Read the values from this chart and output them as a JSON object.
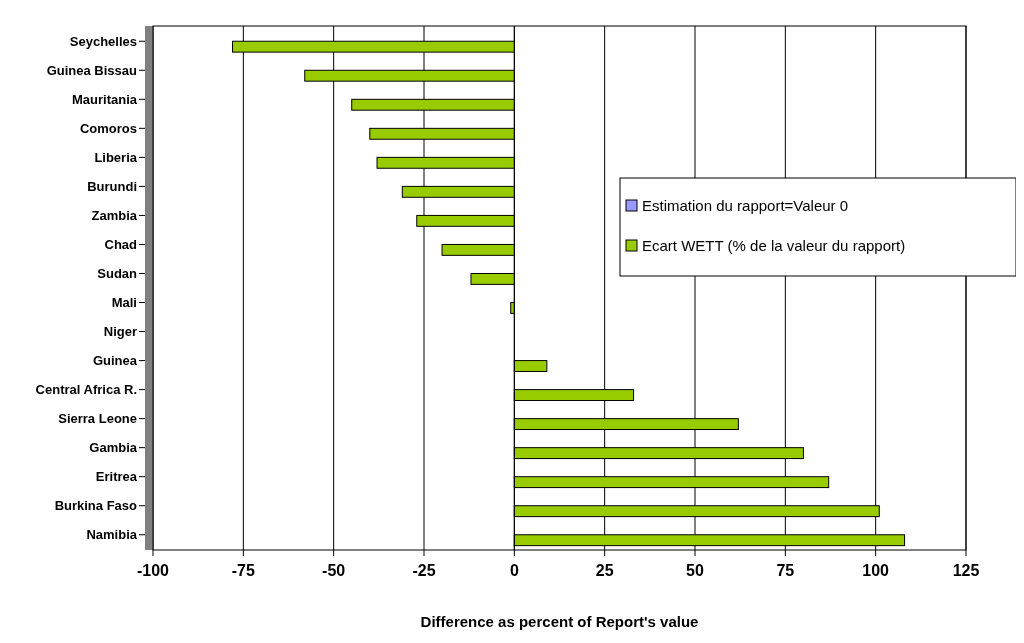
{
  "chart_data": {
    "type": "bar",
    "orientation": "horizontal",
    "xlabel": "Difference as percent of Report's value",
    "categories": [
      "Seychelles",
      "Guinea Bissau",
      "Mauritania",
      "Comoros",
      "Liberia",
      "Burundi",
      "Zambia",
      "Chad",
      "Sudan",
      "Mali",
      "Niger",
      "Guinea",
      "Central Africa R.",
      "Sierra Leone",
      "Gambia",
      "Eritrea",
      "Burkina Faso",
      "Namibia"
    ],
    "series": [
      {
        "name": "Estimation du rapport=Valeur 0",
        "color": "#9999ff",
        "values": [
          0,
          0,
          0,
          0,
          0,
          0,
          0,
          0,
          0,
          0,
          0,
          0,
          0,
          0,
          0,
          0,
          0,
          0
        ]
      },
      {
        "name": "Ecart WETT (% de la valeur du rapport)",
        "color": "#99cc00",
        "values": [
          -78,
          -58,
          -45,
          -40,
          -38,
          -31,
          -27,
          -20,
          -12,
          -1,
          0,
          9,
          33,
          62,
          80,
          87,
          101,
          108
        ]
      }
    ],
    "xlim": [
      -100,
      125
    ],
    "xticks": [
      -100,
      -75,
      -50,
      -25,
      0,
      25,
      50,
      75,
      100,
      125
    ],
    "grid": "x",
    "legend": "right"
  }
}
